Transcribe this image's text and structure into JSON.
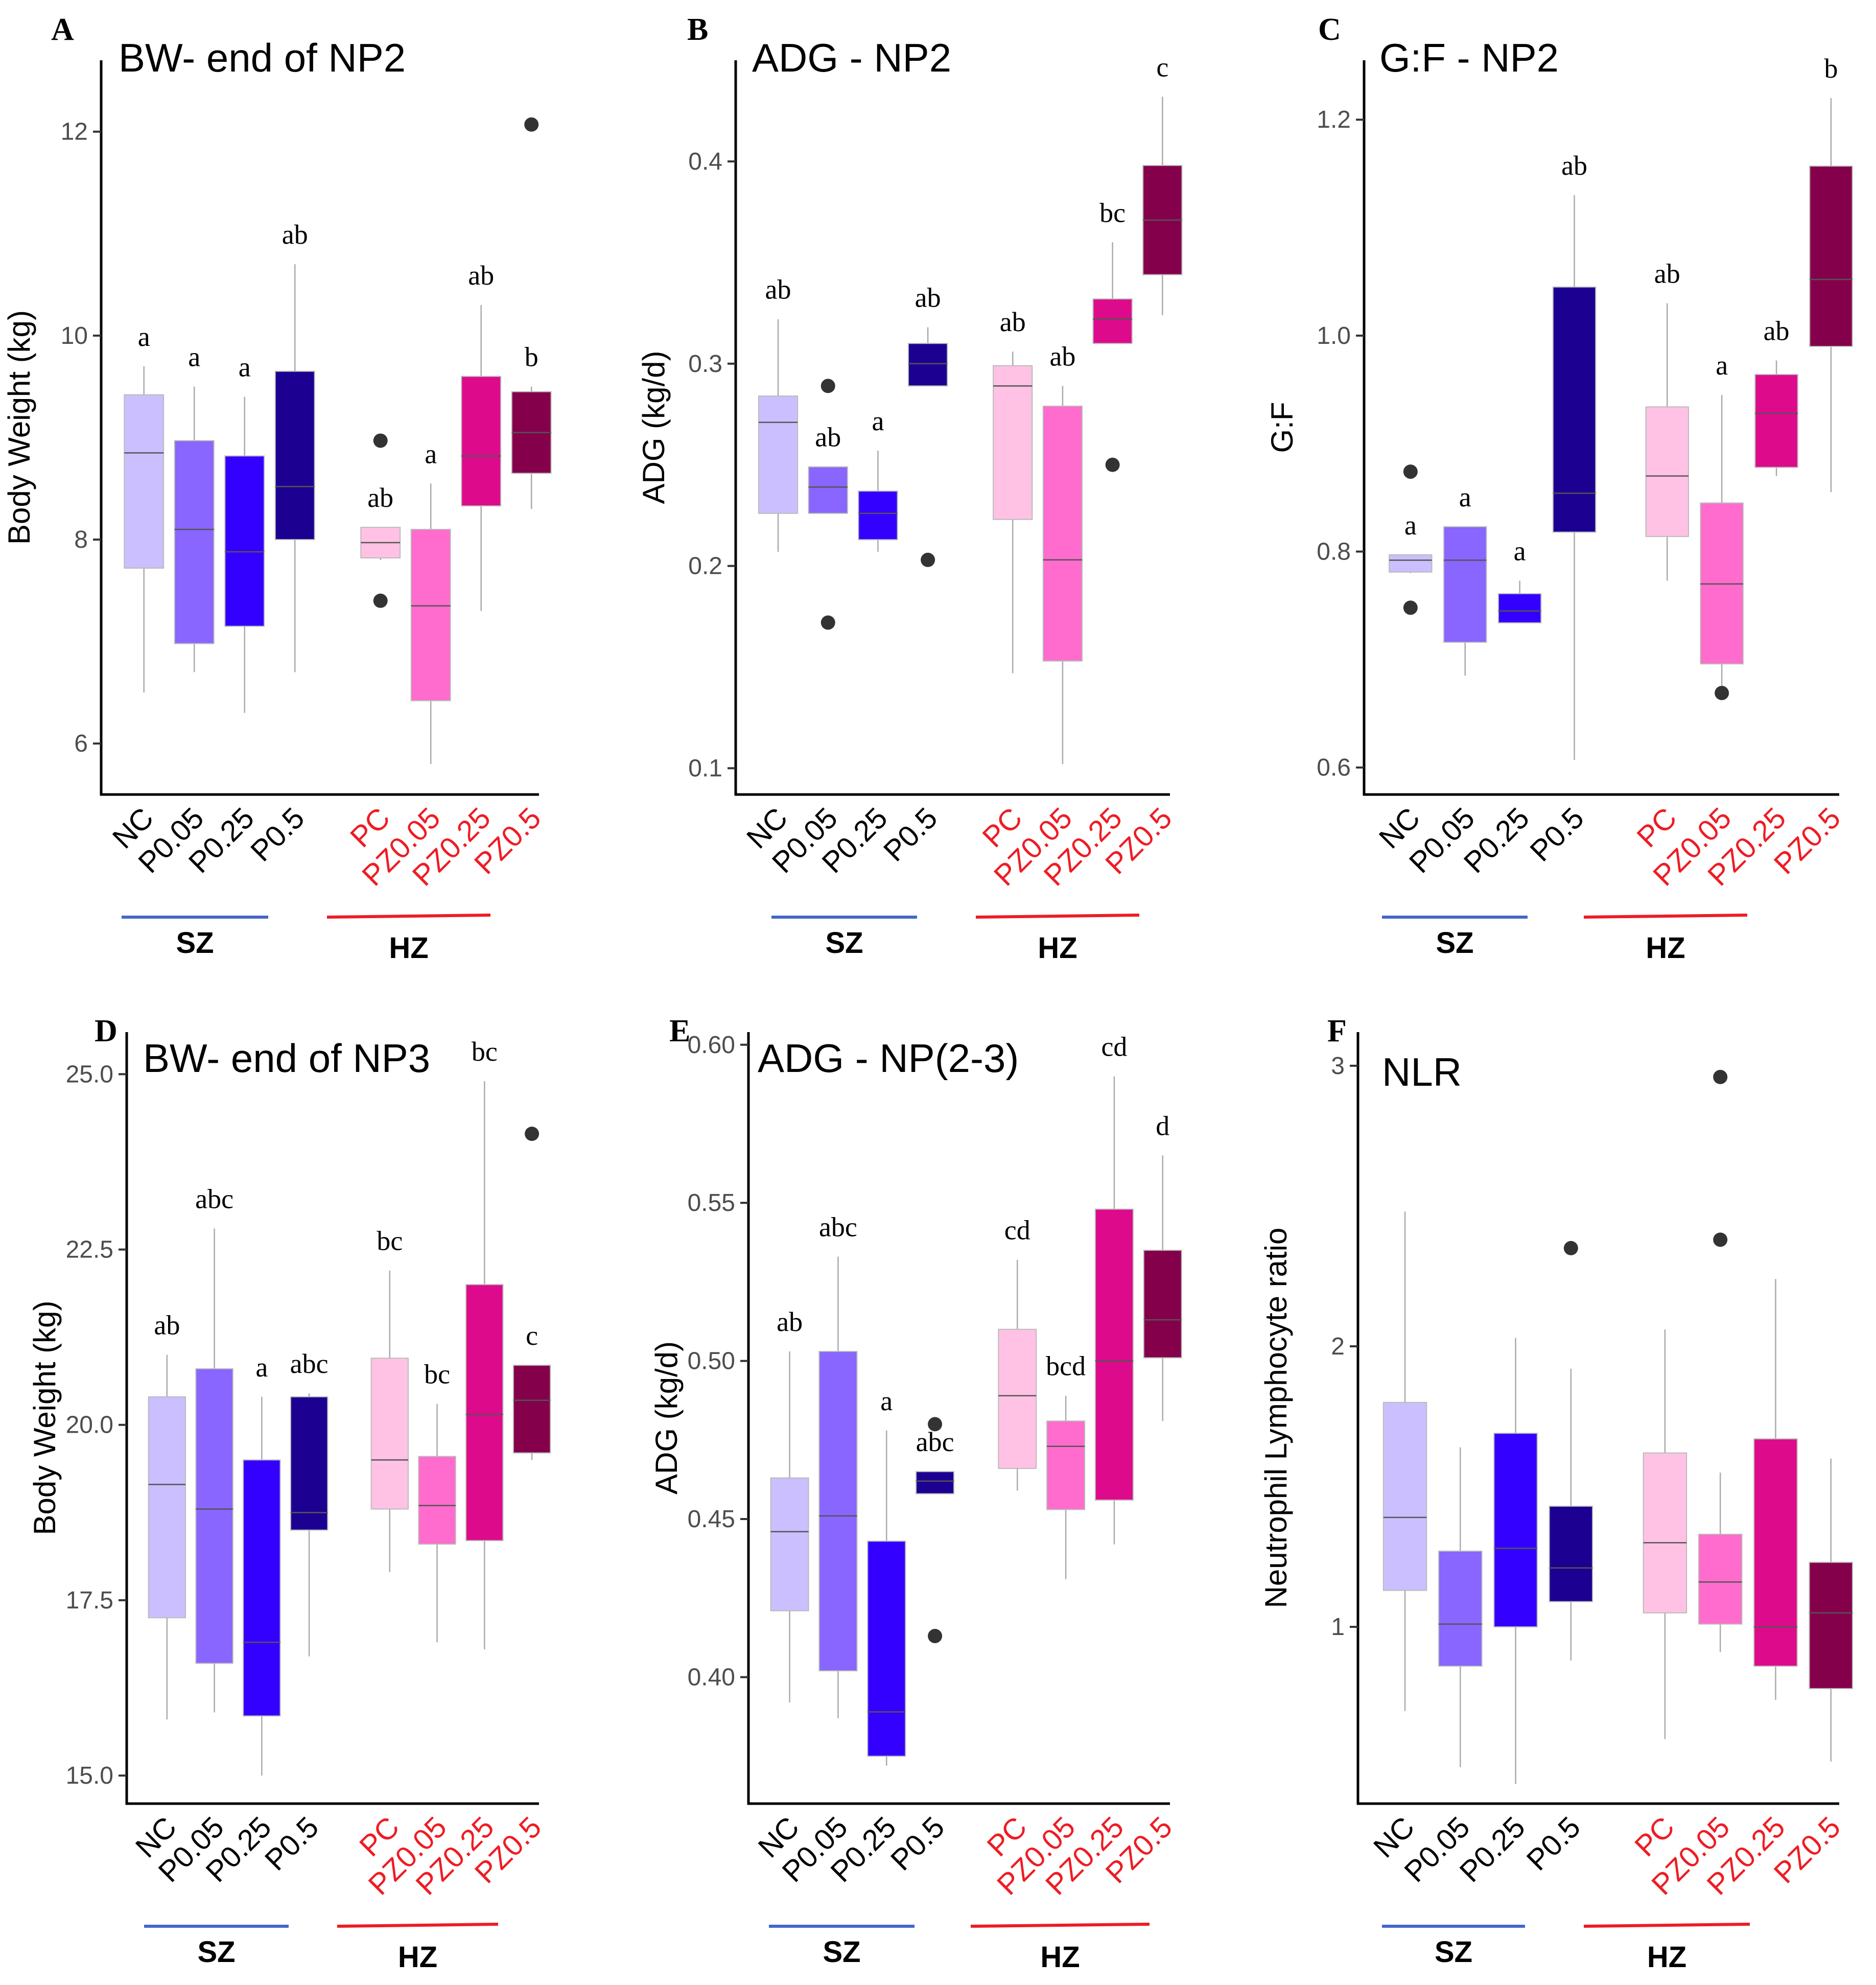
{
  "colors": {
    "NC": "#cbbfff",
    "P0.05": "#8866ff",
    "P0.25": "#3300ff",
    "P0.5": "#1c0091",
    "PC": "#ffc2e4",
    "PZ0.05": "#ff6ccd",
    "PZ0.25": "#de0a8c",
    "PZ0.5": "#85004b",
    "sz_line": "#4466cc",
    "hz_line": "#ee1c24",
    "hz_text": "#ee1c24"
  },
  "groups": {
    "sz_label": "SZ",
    "hz_label": "HZ",
    "sz_categories": [
      "NC",
      "P0.05",
      "P0.25",
      "P0.5"
    ],
    "hz_categories": [
      "PC",
      "PZ0.05",
      "PZ0.25",
      "PZ0.5"
    ]
  },
  "chart_data": [
    {
      "panel": "A",
      "type": "box",
      "title": "BW- end of NP2",
      "ylabel": "Body Weight (kg)",
      "ylim": [
        5.5,
        12.7
      ],
      "yticks": [
        6,
        8,
        10,
        12
      ],
      "categories": [
        "NC",
        "P0.05",
        "P0.25",
        "P0.5",
        "PC",
        "PZ0.05",
        "PZ0.25",
        "PZ0.5"
      ],
      "boxes": [
        {
          "min": 6.5,
          "q1": 7.72,
          "median": 8.85,
          "q3": 9.42,
          "max": 9.7,
          "outliers": [],
          "letter": "a"
        },
        {
          "min": 6.7,
          "q1": 6.98,
          "median": 8.1,
          "q3": 8.97,
          "max": 9.5,
          "outliers": [],
          "letter": "a"
        },
        {
          "min": 6.3,
          "q1": 7.15,
          "median": 7.88,
          "q3": 8.82,
          "max": 9.4,
          "outliers": [],
          "letter": "a"
        },
        {
          "min": 6.7,
          "q1": 8.0,
          "median": 8.52,
          "q3": 9.65,
          "max": 10.7,
          "outliers": [],
          "letter": "ab"
        },
        {
          "min": 7.8,
          "q1": 7.82,
          "median": 7.97,
          "q3": 8.12,
          "max": 8.12,
          "outliers": [
            8.97,
            7.4
          ],
          "letter": "ab"
        },
        {
          "min": 5.8,
          "q1": 6.42,
          "median": 7.35,
          "q3": 8.1,
          "max": 8.55,
          "outliers": [],
          "letter": "a"
        },
        {
          "min": 7.3,
          "q1": 8.33,
          "median": 8.82,
          "q3": 9.6,
          "max": 10.3,
          "outliers": [],
          "letter": "ab"
        },
        {
          "min": 8.3,
          "q1": 8.65,
          "median": 9.05,
          "q3": 9.45,
          "max": 9.5,
          "outliers": [
            12.07
          ],
          "letter": "b"
        }
      ]
    },
    {
      "panel": "B",
      "type": "box",
      "title": "ADG - NP2",
      "ylabel": "ADG (kg/d)",
      "ylim": [
        0.087,
        0.45
      ],
      "yticks": [
        0.1,
        0.2,
        0.3,
        0.4
      ],
      "categories": [
        "NC",
        "P0.05",
        "P0.25",
        "P0.5",
        "PC",
        "PZ0.05",
        "PZ0.25",
        "PZ0.5"
      ],
      "boxes": [
        {
          "min": 0.207,
          "q1": 0.226,
          "median": 0.271,
          "q3": 0.284,
          "max": 0.322,
          "outliers": [],
          "letter": "ab"
        },
        {
          "min": 0.226,
          "q1": 0.226,
          "median": 0.239,
          "q3": 0.249,
          "max": 0.249,
          "outliers": [
            0.289,
            0.172
          ],
          "letter": "ab"
        },
        {
          "min": 0.207,
          "q1": 0.213,
          "median": 0.226,
          "q3": 0.237,
          "max": 0.257,
          "outliers": [],
          "letter": "a"
        },
        {
          "min": 0.289,
          "q1": 0.289,
          "median": 0.3,
          "q3": 0.31,
          "max": 0.318,
          "outliers": [
            0.203
          ],
          "letter": "ab"
        },
        {
          "min": 0.147,
          "q1": 0.223,
          "median": 0.289,
          "q3": 0.299,
          "max": 0.306,
          "outliers": [],
          "letter": "ab"
        },
        {
          "min": 0.102,
          "q1": 0.153,
          "median": 0.203,
          "q3": 0.279,
          "max": 0.289,
          "outliers": [],
          "letter": "ab"
        },
        {
          "min": 0.31,
          "q1": 0.31,
          "median": 0.322,
          "q3": 0.332,
          "max": 0.36,
          "outliers": [
            0.25
          ],
          "letter": "bc"
        },
        {
          "min": 0.324,
          "q1": 0.344,
          "median": 0.371,
          "q3": 0.398,
          "max": 0.432,
          "outliers": [],
          "letter": "c"
        }
      ]
    },
    {
      "panel": "C",
      "type": "box",
      "title": "G:F - NP2",
      "ylabel": "G:F",
      "ylim": [
        0.575,
        1.255
      ],
      "yticks": [
        0.6,
        0.8,
        1.0,
        1.2
      ],
      "categories": [
        "NC",
        "P0.05",
        "P0.25",
        "P0.5",
        "PC",
        "PZ0.05",
        "PZ0.25",
        "PZ0.5"
      ],
      "boxes": [
        {
          "min": 0.78,
          "q1": 0.781,
          "median": 0.792,
          "q3": 0.797,
          "max": 0.797,
          "outliers": [
            0.874,
            0.748
          ],
          "letter": "a"
        },
        {
          "min": 0.685,
          "q1": 0.716,
          "median": 0.792,
          "q3": 0.823,
          "max": 0.823,
          "outliers": [],
          "letter": "a"
        },
        {
          "min": 0.734,
          "q1": 0.734,
          "median": 0.745,
          "q3": 0.761,
          "max": 0.773,
          "outliers": [],
          "letter": "a"
        },
        {
          "min": 0.607,
          "q1": 0.818,
          "median": 0.854,
          "q3": 1.045,
          "max": 1.13,
          "outliers": [],
          "letter": "ab"
        },
        {
          "min": 0.773,
          "q1": 0.814,
          "median": 0.87,
          "q3": 0.934,
          "max": 1.03,
          "outliers": [],
          "letter": "ab"
        },
        {
          "min": 0.667,
          "q1": 0.696,
          "median": 0.77,
          "q3": 0.845,
          "max": 0.945,
          "outliers": [
            0.669
          ],
          "letter": "a"
        },
        {
          "min": 0.87,
          "q1": 0.878,
          "median": 0.928,
          "q3": 0.964,
          "max": 0.977,
          "outliers": [],
          "letter": "ab"
        },
        {
          "min": 0.855,
          "q1": 0.99,
          "median": 1.052,
          "q3": 1.157,
          "max": 1.22,
          "outliers": [],
          "letter": "b"
        }
      ]
    },
    {
      "panel": "D",
      "type": "box",
      "title": "BW- end of NP3",
      "ylabel": "Body Weight (kg)",
      "ylim": [
        14.6,
        25.6
      ],
      "yticks": [
        15.0,
        17.5,
        20.0,
        22.5,
        25.0
      ],
      "categories": [
        "NC",
        "P0.05",
        "P0.25",
        "P0.5",
        "PC",
        "PZ0.05",
        "PZ0.25",
        "PZ0.5"
      ],
      "boxes": [
        {
          "min": 15.8,
          "q1": 17.25,
          "median": 19.15,
          "q3": 20.4,
          "max": 21.0,
          "outliers": [],
          "letter": "ab"
        },
        {
          "min": 15.9,
          "q1": 16.6,
          "median": 18.8,
          "q3": 20.8,
          "max": 22.8,
          "outliers": [],
          "letter": "abc"
        },
        {
          "min": 15.0,
          "q1": 15.85,
          "median": 16.9,
          "q3": 19.5,
          "max": 20.4,
          "outliers": [],
          "letter": "a"
        },
        {
          "min": 16.7,
          "q1": 18.5,
          "median": 18.75,
          "q3": 20.4,
          "max": 20.45,
          "outliers": [],
          "letter": "abc"
        },
        {
          "min": 17.9,
          "q1": 18.8,
          "median": 19.5,
          "q3": 20.95,
          "max": 22.2,
          "outliers": [],
          "letter": "bc"
        },
        {
          "min": 16.9,
          "q1": 18.3,
          "median": 18.85,
          "q3": 19.55,
          "max": 20.3,
          "outliers": [],
          "letter": "bc"
        },
        {
          "min": 16.8,
          "q1": 18.35,
          "median": 20.15,
          "q3": 22.0,
          "max": 24.9,
          "outliers": [],
          "letter": "bc"
        },
        {
          "min": 19.5,
          "q1": 19.6,
          "median": 20.35,
          "q3": 20.85,
          "max": 20.85,
          "outliers": [
            24.15
          ],
          "letter": "c"
        }
      ]
    },
    {
      "panel": "E",
      "type": "box",
      "title": "ADG - NP(2-3)",
      "ylabel": "ADG (kg/d)",
      "ylim": [
        0.36,
        0.604
      ],
      "yticks": [
        0.4,
        0.45,
        0.5,
        0.55,
        0.6
      ],
      "ytick_labels": [
        "0.40",
        "0.45",
        "0.50",
        "0.55",
        "0.60"
      ],
      "categories": [
        "NC",
        "P0.05",
        "P0.25",
        "P0.5",
        "PC",
        "PZ0.05",
        "PZ0.25",
        "PZ0.5"
      ],
      "boxes": [
        {
          "min": 0.392,
          "q1": 0.421,
          "median": 0.446,
          "q3": 0.463,
          "max": 0.503,
          "outliers": [],
          "letter": "ab"
        },
        {
          "min": 0.387,
          "q1": 0.402,
          "median": 0.451,
          "q3": 0.503,
          "max": 0.533,
          "outliers": [],
          "letter": "abc"
        },
        {
          "min": 0.372,
          "q1": 0.375,
          "median": 0.389,
          "q3": 0.443,
          "max": 0.478,
          "outliers": [],
          "letter": "a"
        },
        {
          "min": 0.458,
          "q1": 0.458,
          "median": 0.462,
          "q3": 0.465,
          "max": 0.465,
          "outliers": [
            0.48,
            0.413
          ],
          "letter": "abc"
        },
        {
          "min": 0.459,
          "q1": 0.466,
          "median": 0.489,
          "q3": 0.51,
          "max": 0.532,
          "outliers": [],
          "letter": "cd"
        },
        {
          "min": 0.431,
          "q1": 0.453,
          "median": 0.473,
          "q3": 0.481,
          "max": 0.489,
          "outliers": [],
          "letter": "bcd"
        },
        {
          "min": 0.442,
          "q1": 0.456,
          "median": 0.5,
          "q3": 0.548,
          "max": 0.59,
          "outliers": [],
          "letter": "cd"
        },
        {
          "min": 0.481,
          "q1": 0.501,
          "median": 0.513,
          "q3": 0.535,
          "max": 0.565,
          "outliers": [],
          "letter": "d"
        }
      ]
    },
    {
      "panel": "F",
      "type": "box",
      "title": "NLR",
      "ylabel": "Neutrophil Lymphocyte ratio",
      "ylim": [
        0.37,
        3.12
      ],
      "yticks": [
        1,
        2,
        3
      ],
      "categories": [
        "NC",
        "P0.05",
        "P0.25",
        "P0.5",
        "PC",
        "PZ0.05",
        "PZ0.25",
        "PZ0.5"
      ],
      "boxes": [
        {
          "min": 0.7,
          "q1": 1.13,
          "median": 1.39,
          "q3": 1.8,
          "max": 2.48,
          "outliers": [],
          "letter": ""
        },
        {
          "min": 0.5,
          "q1": 0.86,
          "median": 1.01,
          "q3": 1.27,
          "max": 1.64,
          "outliers": [],
          "letter": ""
        },
        {
          "min": 0.44,
          "q1": 1.0,
          "median": 1.28,
          "q3": 1.69,
          "max": 2.03,
          "outliers": [],
          "letter": ""
        },
        {
          "min": 0.88,
          "q1": 1.09,
          "median": 1.21,
          "q3": 1.43,
          "max": 1.92,
          "outliers": [
            2.35
          ],
          "letter": ""
        },
        {
          "min": 0.6,
          "q1": 1.05,
          "median": 1.3,
          "q3": 1.62,
          "max": 2.06,
          "outliers": [],
          "letter": ""
        },
        {
          "min": 0.91,
          "q1": 1.01,
          "median": 1.16,
          "q3": 1.33,
          "max": 1.55,
          "outliers": [
            2.96,
            2.38
          ],
          "letter": ""
        },
        {
          "min": 0.74,
          "q1": 0.86,
          "median": 1.0,
          "q3": 1.67,
          "max": 2.24,
          "outliers": [],
          "letter": ""
        },
        {
          "min": 0.52,
          "q1": 0.78,
          "median": 1.05,
          "q3": 1.23,
          "max": 1.6,
          "outliers": [],
          "letter": ""
        }
      ]
    }
  ]
}
